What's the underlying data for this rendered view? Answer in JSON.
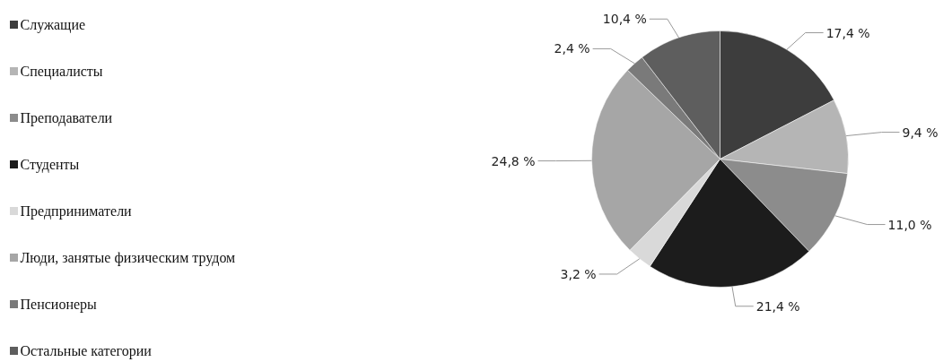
{
  "chart_data": {
    "type": "pie",
    "legend": "left",
    "categories": [
      "Служащие",
      "Специалисты",
      "Преподаватели",
      "Студенты",
      "Предприниматели",
      "Люди, занятые физическим трудом",
      "Пенсионеры",
      "Остальные категории"
    ],
    "values": [
      17.4,
      9.4,
      11.0,
      21.4,
      3.2,
      24.8,
      2.4,
      10.4
    ],
    "value_labels": [
      "17,4 %",
      "9,4 %",
      "11,0 %",
      "21,4 %",
      "3,2 %",
      "24,8 %",
      "2,4 %",
      "10,4 %"
    ],
    "colors": [
      "#3d3d3d",
      "#b5b5b5",
      "#8c8c8c",
      "#1c1c1c",
      "#d9d9d9",
      "#a6a6a6",
      "#7a7a7a",
      "#5e5e5e"
    ]
  }
}
